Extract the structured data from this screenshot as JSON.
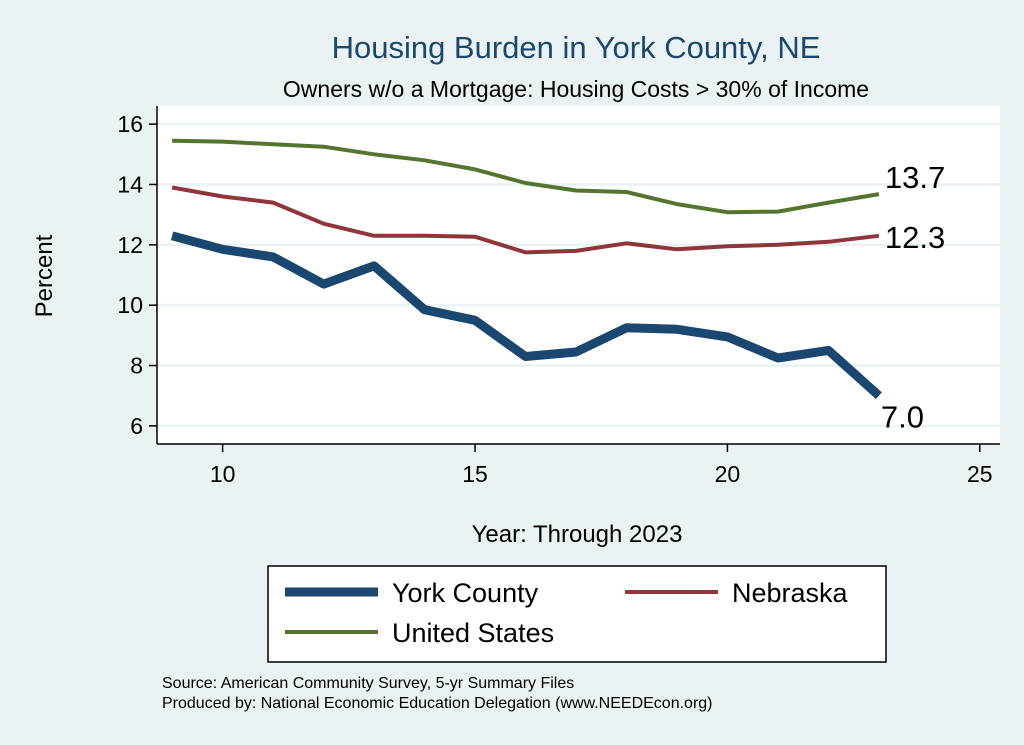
{
  "chart_data": {
    "type": "line",
    "title": "Housing Burden in York County, NE",
    "subtitle": "Owners w/o a Mortgage: Housing Costs > 30% of Income",
    "xlabel": "Year: Through 2023",
    "ylabel": "Percent",
    "xlim": [
      8.7,
      25.4
    ],
    "ylim": [
      5.4,
      16.6
    ],
    "xticks": [
      10,
      15,
      20,
      25
    ],
    "yticks": [
      6,
      8,
      10,
      12,
      14,
      16
    ],
    "grid": true,
    "legend_placement": "bottom",
    "x": [
      9,
      10,
      11,
      12,
      13,
      14,
      15,
      16,
      17,
      18,
      19,
      20,
      21,
      22,
      23
    ],
    "series": [
      {
        "name": "York County",
        "color": "#1a476f",
        "width": 9,
        "values": [
          12.3,
          11.85,
          11.6,
          10.7,
          11.3,
          9.85,
          9.5,
          8.3,
          8.45,
          9.25,
          9.2,
          8.95,
          8.25,
          8.5,
          7.0
        ],
        "end_label": "7.0"
      },
      {
        "name": "Nebraska",
        "color": "#90353b",
        "width": 4,
        "values": [
          13.9,
          13.6,
          13.4,
          12.7,
          12.3,
          12.3,
          12.27,
          11.75,
          11.8,
          12.05,
          11.85,
          11.95,
          12.0,
          12.1,
          12.3
        ],
        "end_label": "12.3"
      },
      {
        "name": "United States",
        "color": "#55752f",
        "width": 4,
        "values": [
          15.45,
          15.42,
          15.33,
          15.25,
          15.0,
          14.8,
          14.5,
          14.05,
          13.8,
          13.75,
          13.35,
          13.08,
          13.1,
          13.4,
          13.68
        ],
        "end_label": "13.7"
      }
    ],
    "notes": [
      "Source: American Community Survey, 5-yr Summary Files",
      "Produced by: National Economic Education Delegation (www.NEEDEcon.org)"
    ]
  }
}
